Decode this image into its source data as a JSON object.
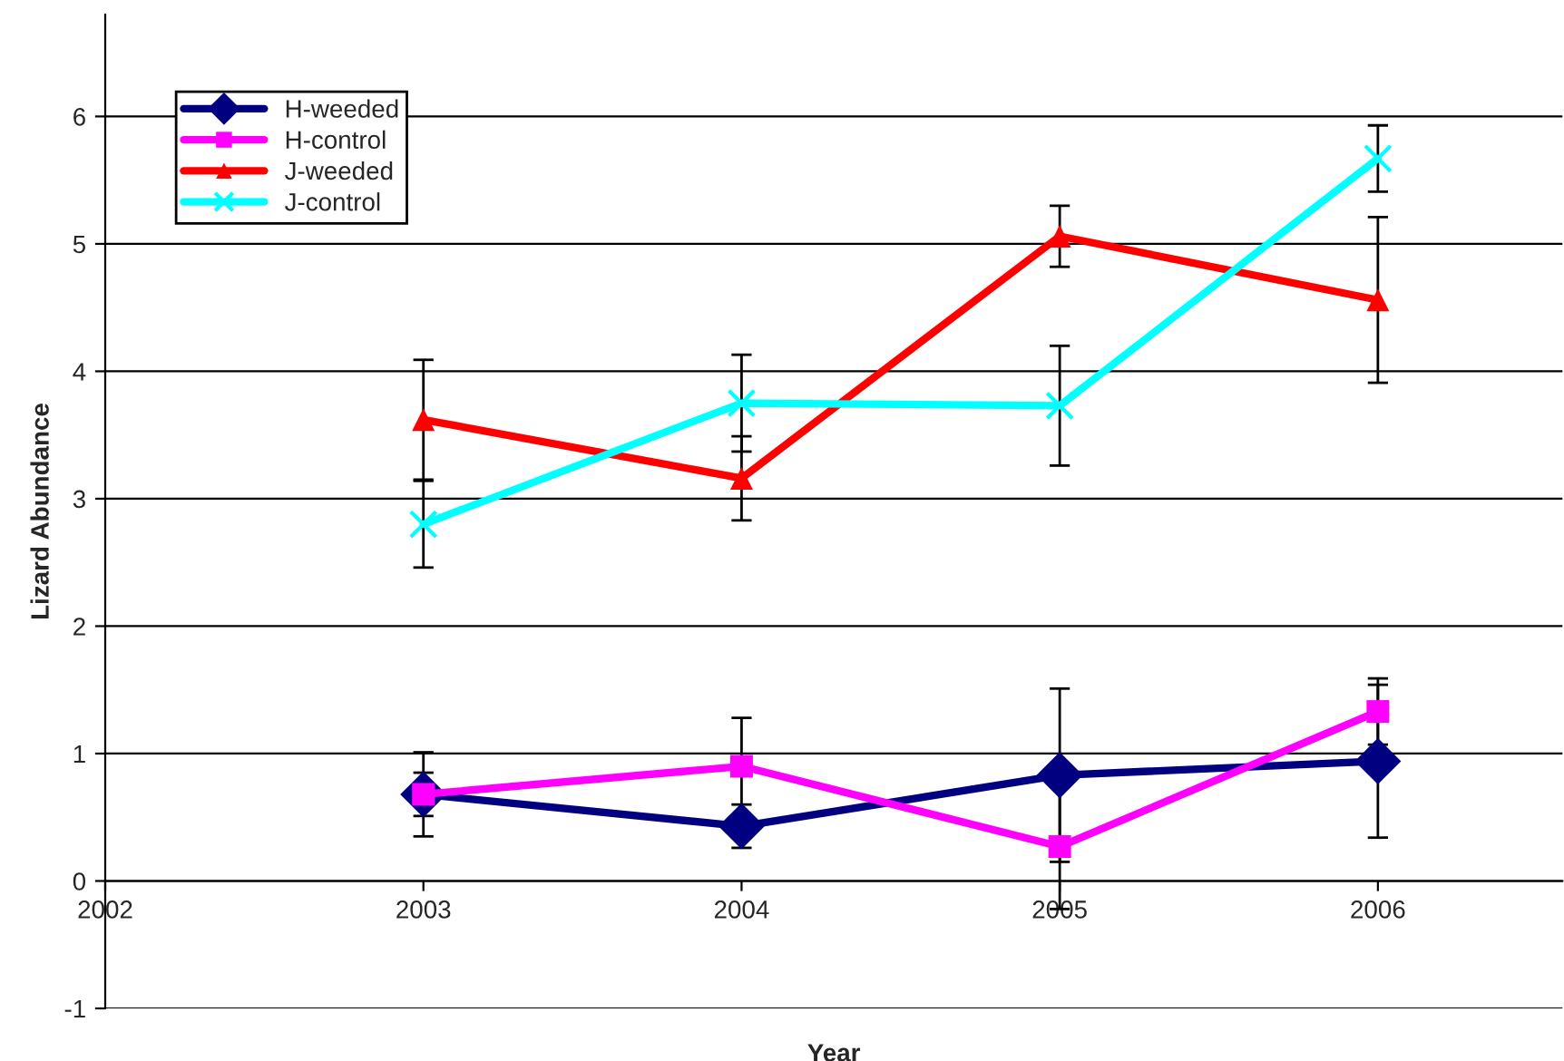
{
  "chart_data": {
    "type": "line",
    "xlabel": "Year",
    "ylabel": "Lizard Abundance",
    "x": [
      2003,
      2004,
      2005,
      2006
    ],
    "xlim": [
      2002,
      2006.58
    ],
    "xticks": [
      2002,
      2003,
      2004,
      2005,
      2006
    ],
    "ylim": [
      -1,
      6.8
    ],
    "yticks": [
      -1,
      0,
      1,
      2,
      3,
      4,
      5,
      6
    ],
    "grid": "y",
    "legend": "top left",
    "series": [
      {
        "name": "H-weeded",
        "color": "#000080",
        "marker": "diamond",
        "values": [
          0.68,
          0.43,
          0.83,
          0.94
        ],
        "errors": [
          0.33,
          0.17,
          0.68,
          0.6
        ]
      },
      {
        "name": "H-control",
        "color": "#ff00ff",
        "marker": "square",
        "values": [
          0.68,
          0.9,
          0.27,
          1.33
        ],
        "errors": [
          0.17,
          0.38,
          0.49,
          0.26
        ]
      },
      {
        "name": "J-weeded",
        "color": "#ff0000",
        "marker": "triangle",
        "values": [
          3.62,
          3.16,
          5.06,
          4.56
        ],
        "errors": [
          0.47,
          0.33,
          0.24,
          0.65
        ]
      },
      {
        "name": "J-control",
        "color": "#00ffff",
        "marker": "cross",
        "values": [
          2.8,
          3.75,
          3.73,
          5.67
        ],
        "errors": [
          0.34,
          0.38,
          0.47,
          0.26
        ]
      }
    ]
  }
}
